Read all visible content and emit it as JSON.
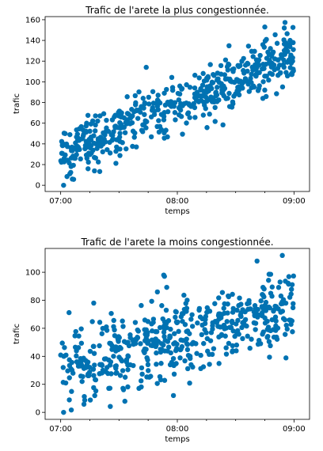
{
  "chart_data": [
    {
      "type": "scatter",
      "title": "Trafic de l'arete la plus congestionnée.",
      "xlabel": "temps",
      "ylabel": "trafic",
      "x_start_label": "07:00",
      "x_end_label": "09:00",
      "x_range_minutes": [
        -8,
        128
      ],
      "ylim": [
        -6,
        163
      ],
      "yticks": [
        0,
        20,
        40,
        60,
        80,
        100,
        120,
        140,
        160
      ],
      "xticks": [
        {
          "label": "07:00"
        },
        {
          "label": "08:00"
        },
        {
          "label": "09:00"
        }
      ],
      "grid": false,
      "marker_color": "#0072b2",
      "trend": {
        "start": 30,
        "end": 125,
        "noise": 13
      },
      "n_points": 520,
      "anchor_points": [
        {
          "x": 1.5,
          "y": 0
        },
        {
          "x": 6,
          "y": 6
        },
        {
          "x": 44,
          "y": 114
        },
        {
          "x": 105,
          "y": 153
        },
        {
          "x": 115,
          "y": 152
        },
        {
          "x": 118,
          "y": 140
        }
      ]
    },
    {
      "type": "scatter",
      "title": "Trafic de l'arete la moins congestionnée.",
      "xlabel": "temps",
      "ylabel": "trafic",
      "x_start_label": "07:00",
      "x_end_label": "09:00",
      "x_range_minutes": [
        -8,
        128
      ],
      "ylim": [
        -5,
        117
      ],
      "yticks": [
        0,
        20,
        40,
        60,
        80,
        100
      ],
      "xticks": [
        {
          "label": "07:00"
        },
        {
          "label": "08:00"
        },
        {
          "label": "09:00"
        }
      ],
      "grid": false,
      "marker_color": "#0072b2",
      "trend": {
        "start": 30,
        "end": 75,
        "noise": 14
      },
      "n_points": 520,
      "anchor_points": [
        {
          "x": 1.5,
          "y": 0
        },
        {
          "x": 17,
          "y": 78
        },
        {
          "x": 53,
          "y": 98
        },
        {
          "x": 101,
          "y": 108
        },
        {
          "x": 114,
          "y": 112
        },
        {
          "x": 58,
          "y": 12
        }
      ]
    }
  ]
}
